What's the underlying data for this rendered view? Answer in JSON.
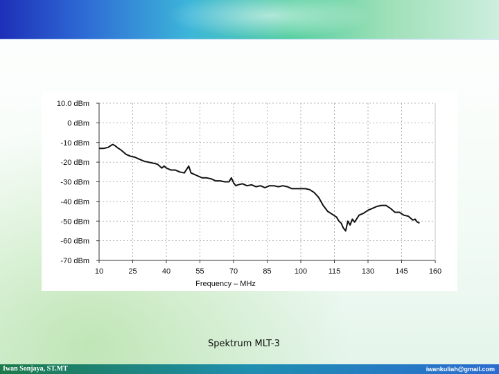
{
  "footer": {
    "author": "Iwan Sonjaya, ST.MT",
    "email": "iwankuliah@gmail.com"
  },
  "caption": "Spektrum MLT-3",
  "colors": {
    "top_band_start": "#1e2fb8",
    "top_band_end": "#cdeede",
    "trace": "#111111"
  },
  "chart_data": {
    "type": "line",
    "xlabel": "Frequency – MHz",
    "ylabel": "",
    "xlim": [
      10,
      160
    ],
    "ylim": [
      -70,
      10
    ],
    "x_ticks": [
      10,
      25,
      40,
      55,
      70,
      85,
      100,
      115,
      130,
      145,
      160
    ],
    "x_tick_labels": [
      "10",
      "25",
      "40",
      "55",
      "70",
      "85",
      "100",
      "115",
      "130",
      "145",
      "160"
    ],
    "y_ticks": [
      10,
      0,
      -10,
      -20,
      -30,
      -40,
      -50,
      -60,
      -70
    ],
    "y_tick_labels": [
      "10.0 dBm",
      "0 dBm",
      "-10 dBm",
      "-20 dBm",
      "-30 dBm",
      "-40 dBm",
      "-50 dBm",
      "-60 dBm",
      "-70 dBm"
    ],
    "grid": true,
    "series": [
      {
        "x": [
          10,
          12,
          14,
          16,
          17,
          18,
          20,
          22,
          24,
          26,
          28,
          30,
          32,
          34,
          36,
          38,
          39,
          40,
          42,
          44,
          46,
          48,
          50,
          51,
          52,
          54,
          56,
          58,
          60,
          62,
          64,
          66,
          68,
          69,
          70,
          71,
          72,
          74,
          76,
          78,
          80,
          82,
          84,
          86,
          88,
          90,
          92,
          94,
          96,
          98,
          100,
          102,
          104,
          106,
          108,
          110,
          112,
          114,
          116,
          117,
          118,
          119,
          120,
          121,
          122,
          123,
          124,
          126,
          128,
          130,
          132,
          134,
          136,
          138,
          140,
          142,
          144,
          146,
          148,
          150,
          151,
          152,
          153
        ],
        "y": [
          -13,
          -13,
          -12.5,
          -11,
          -11.5,
          -12.5,
          -14,
          -16,
          -17,
          -17.5,
          -18.5,
          -19.5,
          -20,
          -20.5,
          -21,
          -23,
          -22,
          -23,
          -24,
          -24,
          -25,
          -25.5,
          -22,
          -25.5,
          -26,
          -27,
          -28,
          -28,
          -28.5,
          -29.5,
          -29.5,
          -30,
          -30,
          -28,
          -30.5,
          -32,
          -31.5,
          -31,
          -32,
          -31.5,
          -32.5,
          -32,
          -33,
          -32,
          -32,
          -32.5,
          -32,
          -32.5,
          -33.5,
          -33.5,
          -33.5,
          -33.5,
          -34,
          -35.5,
          -38,
          -42,
          -45,
          -46.5,
          -48,
          -50,
          -51,
          -53.5,
          -55,
          -50,
          -52,
          -49,
          -50.5,
          -47,
          -46,
          -44.5,
          -43.5,
          -42.5,
          -42,
          -42,
          -43.5,
          -45.5,
          -45.5,
          -47,
          -47.5,
          -49.5,
          -49,
          -50.5,
          -51
        ]
      }
    ]
  }
}
